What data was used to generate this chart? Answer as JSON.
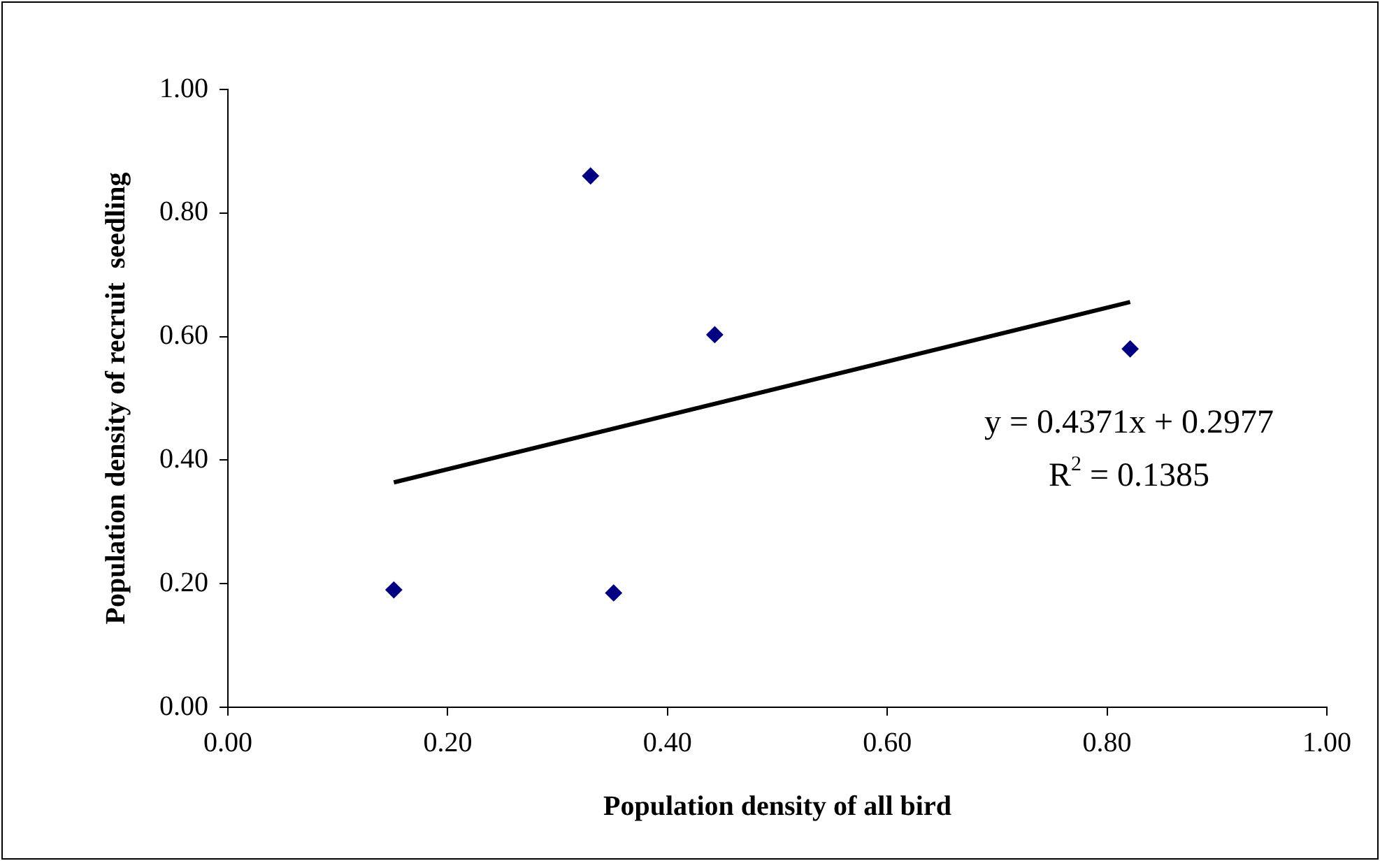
{
  "chart_data": {
    "type": "scatter",
    "xlabel": "Population density of all bird",
    "ylabel": "Population density of recruit  seedling",
    "series": [
      {
        "color": "#000080",
        "marker": "diamond",
        "x": [
          0.151,
          0.33,
          0.351,
          0.443,
          0.821
        ],
        "values": [
          0.19,
          0.86,
          0.185,
          0.603,
          0.58
        ]
      },
      {
        "type": "line",
        "color": "#000000",
        "marker": "none",
        "line_style": "solid",
        "x": [
          0.151,
          0.821
        ],
        "values": [
          0.364,
          0.656
        ]
      }
    ],
    "annotations": [
      "y = 0.4371x + 0.2977",
      "R$^{2}$ = 0.1385"
    ],
    "xlim": [
      0,
      1
    ],
    "ylim": [
      0,
      1
    ],
    "xticks": [
      {
        "value": 0,
        "label": "0.00"
      },
      {
        "value": 0.2,
        "label": "0.20"
      },
      {
        "value": 0.4,
        "label": "0.40"
      },
      {
        "value": 0.6,
        "label": "0.60"
      },
      {
        "value": 0.8,
        "label": "0.80"
      },
      {
        "value": 1,
        "label": "1.00"
      }
    ],
    "yticks": [
      {
        "value": 0,
        "label": "0.00"
      },
      {
        "value": 0.2,
        "label": "0.20"
      },
      {
        "value": 0.4,
        "label": "0.40"
      },
      {
        "value": 0.6,
        "label": "0.60"
      },
      {
        "value": 0.8,
        "label": "0.80"
      },
      {
        "value": 1,
        "label": "1.00"
      }
    ],
    "grid": false,
    "legend": false
  }
}
